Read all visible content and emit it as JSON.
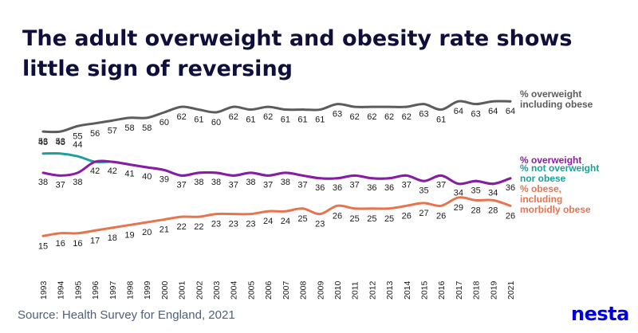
{
  "title": "The adult overweight and obesity rate shows little sign of reversing",
  "source": "Source: Health Survey for England, 2021",
  "logo": "nesta",
  "colors": {
    "overweight_obese": "#5c5c5c",
    "overweight": "#8c1aa6",
    "not_overweight": "#1aa199",
    "obese": "#e8734f",
    "title": "#0f0f3c",
    "source": "#50607a",
    "logo": "#0000e6"
  },
  "chart_data": {
    "type": "line",
    "title": "The adult overweight and obesity rate shows little sign of reversing",
    "xlabel": "",
    "ylabel": "",
    "x": [
      "1993",
      "1994",
      "1995",
      "1996",
      "1997",
      "1998",
      "1999",
      "2000",
      "2001",
      "2002",
      "2003",
      "2004",
      "2005",
      "2006",
      "2007",
      "2008",
      "2009",
      "2010",
      "2011",
      "2012",
      "2013",
      "2014",
      "2015",
      "2016",
      "2017",
      "2018",
      "2019",
      "2021"
    ],
    "ylim": [
      10,
      70
    ],
    "grid": false,
    "legend": "right",
    "series": [
      {
        "name": "% overweight including obese",
        "label_lines": [
          "% overweight",
          "including obese"
        ],
        "color_key": "overweight_obese",
        "values": [
          53,
          53,
          55,
          56,
          57,
          58,
          58,
          60,
          62,
          61,
          60,
          62,
          61,
          62,
          61,
          61,
          61,
          63,
          62,
          62,
          62,
          62,
          63,
          61,
          64,
          63,
          64,
          64
        ],
        "labels": [
          "53",
          "53",
          "55",
          "56",
          "57",
          "58",
          "58",
          "60",
          "62",
          "61",
          "60",
          "62",
          "61",
          "62",
          "61",
          "61",
          "61",
          "63",
          "62",
          "62",
          "62",
          "62",
          "63",
          "61",
          "64",
          "63",
          "64",
          "64"
        ]
      },
      {
        "name": "% not overweight nor obese",
        "label_lines": [
          "% not overweight",
          "nor obese"
        ],
        "color_key": "not_overweight",
        "values": [
          45,
          45,
          44,
          42,
          42,
          41,
          40,
          39,
          37,
          38,
          38,
          37,
          38,
          37,
          38,
          37,
          36,
          36,
          37,
          36,
          36,
          37,
          35,
          37,
          34,
          35,
          34,
          36
        ],
        "labels": [
          "45",
          "45",
          "44",
          "",
          "",
          "",
          "",
          "",
          "",
          "",
          "",
          "",
          "",
          "",
          "",
          "",
          "",
          "",
          "",
          "",
          "",
          "",
          "",
          "",
          "",
          "",
          "",
          ""
        ]
      },
      {
        "name": "% overweight",
        "label_lines": [
          "% overweight"
        ],
        "color_key": "overweight",
        "values": [
          38,
          37,
          38,
          42,
          42,
          41,
          40,
          39,
          37,
          38,
          38,
          37,
          38,
          37,
          38,
          37,
          36,
          36,
          37,
          36,
          36,
          37,
          35,
          37,
          34,
          35,
          34,
          36
        ],
        "labels": [
          "38",
          "37",
          "38",
          "42",
          "42",
          "41",
          "40",
          "39",
          "37",
          "38",
          "38",
          "37",
          "38",
          "37",
          "38",
          "37",
          "36",
          "36",
          "37",
          "36",
          "36",
          "37",
          "35",
          "37",
          "34",
          "35",
          "34",
          "36"
        ]
      },
      {
        "name": "% obese, including morbidly obese",
        "label_lines": [
          "% obese,",
          "including",
          "morbidly obese"
        ],
        "color_key": "obese",
        "values": [
          15,
          16,
          16,
          17,
          18,
          19,
          20,
          21,
          22,
          22,
          23,
          23,
          23,
          24,
          24,
          25,
          23,
          26,
          25,
          25,
          25,
          26,
          27,
          26,
          29,
          28,
          28,
          26
        ],
        "labels": [
          "15",
          "16",
          "16",
          "17",
          "18",
          "19",
          "20",
          "21",
          "22",
          "22",
          "23",
          "23",
          "23",
          "24",
          "24",
          "25",
          "23",
          "26",
          "25",
          "25",
          "25",
          "26",
          "27",
          "26",
          "29",
          "28",
          "28",
          "26"
        ]
      }
    ]
  }
}
